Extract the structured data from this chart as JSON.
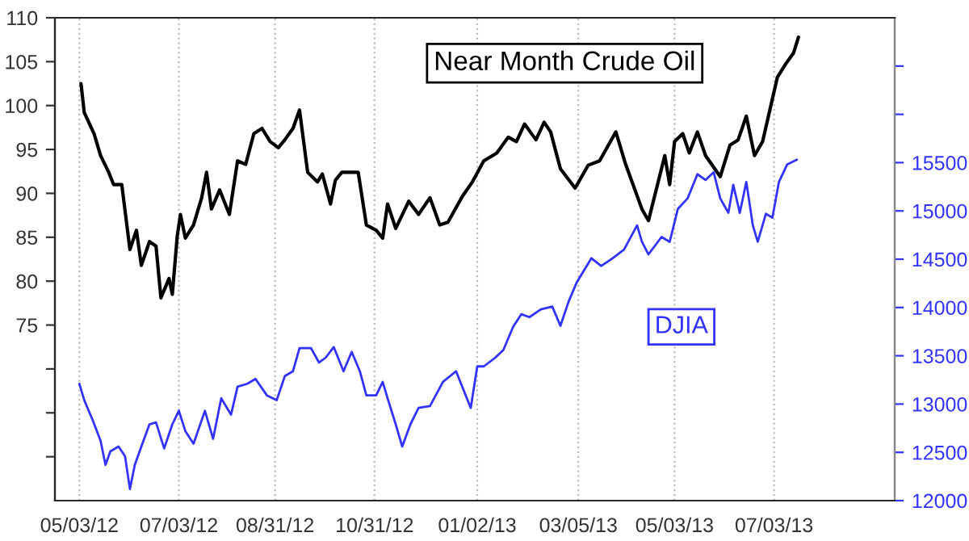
{
  "chart_data": {
    "type": "line",
    "grid": "x",
    "legend": false,
    "xlim": [
      "2012-04-18",
      "2013-09-15"
    ],
    "xticks": [
      {
        "value": "2012-05-03",
        "label": "05/03/12"
      },
      {
        "value": "2012-07-03",
        "label": "07/03/12"
      },
      {
        "value": "2012-08-31",
        "label": "08/31/12"
      },
      {
        "value": "2012-10-31",
        "label": "10/31/12"
      },
      {
        "value": "2013-01-02",
        "label": "01/02/13"
      },
      {
        "value": "2013-03-05",
        "label": "03/05/13"
      },
      {
        "value": "2013-05-03",
        "label": "05/03/13"
      },
      {
        "value": "2013-07-03",
        "label": "07/03/13"
      }
    ],
    "ylim": [
      55,
      110
    ],
    "yticks": [
      {
        "value": 60,
        "label": null
      },
      {
        "value": 65,
        "label": null
      },
      {
        "value": 70,
        "label": null
      },
      75,
      80,
      85,
      90,
      95,
      100,
      105,
      110
    ],
    "y2lim": [
      12000,
      17000
    ],
    "y2ticks": [
      12000,
      12500,
      13000,
      13500,
      14000,
      14500,
      15000,
      15500,
      {
        "value": 16000,
        "label": null
      },
      {
        "value": 16500,
        "label": null
      }
    ],
    "series": [
      {
        "name": "Near Month Crude Oil",
        "color": "#000000",
        "x": [
          "2012-05-04",
          "2012-05-06",
          "2012-05-12",
          "2012-05-16",
          "2012-05-21",
          "2012-05-24",
          "2012-05-29",
          "2012-06-03",
          "2012-06-07",
          "2012-06-10",
          "2012-06-15",
          "2012-06-19",
          "2012-06-22",
          "2012-06-27",
          "2012-06-29",
          "2012-07-02",
          "2012-07-04",
          "2012-07-07",
          "2012-07-12",
          "2012-07-17",
          "2012-07-20",
          "2012-07-23",
          "2012-07-28",
          "2012-08-03",
          "2012-08-08",
          "2012-08-13",
          "2012-08-18",
          "2012-08-23",
          "2012-08-28",
          "2012-09-02",
          "2012-09-06",
          "2012-09-11",
          "2012-09-15",
          "2012-09-20",
          "2012-09-26",
          "2012-09-29",
          "2012-10-04",
          "2012-10-07",
          "2012-10-11",
          "2012-10-21",
          "2012-10-26",
          "2012-11-01",
          "2012-11-05",
          "2012-11-08",
          "2012-11-13",
          "2012-11-21",
          "2012-11-27",
          "2012-12-04",
          "2012-12-10",
          "2012-12-15",
          "2012-12-24",
          "2012-12-30",
          "2013-01-06",
          "2013-01-14",
          "2013-01-21",
          "2013-01-26",
          "2013-01-31",
          "2013-02-07",
          "2013-02-12",
          "2013-02-16",
          "2013-02-22",
          "2013-03-03",
          "2013-03-11",
          "2013-03-18",
          "2013-03-28",
          "2013-04-03",
          "2013-04-13",
          "2013-04-17",
          "2013-04-27",
          "2013-04-30",
          "2013-05-03",
          "2013-05-08",
          "2013-05-12",
          "2013-05-17",
          "2013-05-22",
          "2013-05-31",
          "2013-06-06",
          "2013-06-11",
          "2013-06-16",
          "2013-06-21",
          "2013-06-26",
          "2013-07-05",
          "2013-07-10",
          "2013-07-15",
          "2013-07-18"
        ],
        "values": [
          102.5,
          99.2,
          96.8,
          94.3,
          92.4,
          91,
          91,
          83.6,
          85.8,
          81.8,
          84.5,
          84,
          78.1,
          80.3,
          78.5,
          85.1,
          87.6,
          84.9,
          86.4,
          89.5,
          92.4,
          88.2,
          90.4,
          87.6,
          93.7,
          93.3,
          96.8,
          97.4,
          95.9,
          95.2,
          96.1,
          97.4,
          99.5,
          92.4,
          91.3,
          92.2,
          88.8,
          91.5,
          92.4,
          92.4,
          86.4,
          85.8,
          84.9,
          88.8,
          86,
          89.1,
          87.6,
          89.5,
          86.4,
          86.7,
          89.7,
          91.3,
          93.7,
          94.6,
          96.4,
          95.9,
          97.9,
          96.1,
          98.1,
          97,
          92.8,
          90.6,
          93.2,
          93.7,
          97,
          93.3,
          88.2,
          86.9,
          94.3,
          91,
          95.9,
          96.8,
          94.6,
          97,
          94.3,
          91.9,
          95.5,
          96.1,
          98.8,
          94.3,
          95.9,
          103.2,
          104.7,
          106,
          107.8
        ]
      },
      {
        "name": "DJIA",
        "color": "#3333ff",
        "axis": "y2",
        "x": [
          "2012-05-03",
          "2012-05-06",
          "2012-05-11",
          "2012-05-16",
          "2012-05-19",
          "2012-05-22",
          "2012-05-27",
          "2012-05-31",
          "2012-06-03",
          "2012-06-06",
          "2012-06-10",
          "2012-06-15",
          "2012-06-19",
          "2012-06-24",
          "2012-06-29",
          "2012-07-03",
          "2012-07-07",
          "2012-07-12",
          "2012-07-19",
          "2012-07-24",
          "2012-07-29",
          "2012-08-04",
          "2012-08-08",
          "2012-08-14",
          "2012-08-19",
          "2012-08-26",
          "2012-09-01",
          "2012-09-06",
          "2012-09-11",
          "2012-09-15",
          "2012-09-22",
          "2012-09-27",
          "2012-10-01",
          "2012-10-06",
          "2012-10-12",
          "2012-10-17",
          "2012-10-22",
          "2012-10-26",
          "2012-11-01",
          "2012-11-05",
          "2012-11-08",
          "2012-11-13",
          "2012-11-17",
          "2012-11-22",
          "2012-11-27",
          "2012-12-04",
          "2012-12-12",
          "2012-12-20",
          "2012-12-29",
          "2013-01-02",
          "2013-01-06",
          "2013-01-13",
          "2013-01-18",
          "2013-01-24",
          "2013-01-29",
          "2013-02-03",
          "2013-02-10",
          "2013-02-17",
          "2013-02-22",
          "2013-02-27",
          "2013-03-04",
          "2013-03-13",
          "2013-03-19",
          "2013-03-26",
          "2013-04-02",
          "2013-04-10",
          "2013-04-13",
          "2013-04-17",
          "2013-04-25",
          "2013-04-30",
          "2013-05-05",
          "2013-05-11",
          "2013-05-17",
          "2013-05-22",
          "2013-05-27",
          "2013-05-31",
          "2013-06-05",
          "2013-06-08",
          "2013-06-12",
          "2013-06-16",
          "2013-06-20",
          "2013-06-23",
          "2013-06-28",
          "2013-07-02",
          "2013-07-06",
          "2013-07-11",
          "2013-07-17"
        ],
        "values": [
          13210,
          13040,
          12840,
          12620,
          12370,
          12510,
          12560,
          12460,
          12120,
          12370,
          12560,
          12790,
          12810,
          12540,
          12790,
          12930,
          12720,
          12590,
          12930,
          12640,
          13060,
          12890,
          13180,
          13210,
          13260,
          13090,
          13040,
          13290,
          13340,
          13580,
          13580,
          13430,
          13480,
          13590,
          13340,
          13540,
          13340,
          13090,
          13090,
          13230,
          13060,
          12790,
          12560,
          12790,
          12960,
          12980,
          13230,
          13340,
          12960,
          13390,
          13390,
          13480,
          13560,
          13800,
          13930,
          13900,
          13980,
          14010,
          13810,
          14060,
          14260,
          14510,
          14430,
          14510,
          14600,
          14850,
          14680,
          14550,
          14730,
          14680,
          15020,
          15130,
          15380,
          15320,
          15400,
          15130,
          14980,
          15270,
          14980,
          15300,
          14850,
          14680,
          14970,
          14930,
          15300,
          15480,
          15530
        ]
      }
    ]
  }
}
